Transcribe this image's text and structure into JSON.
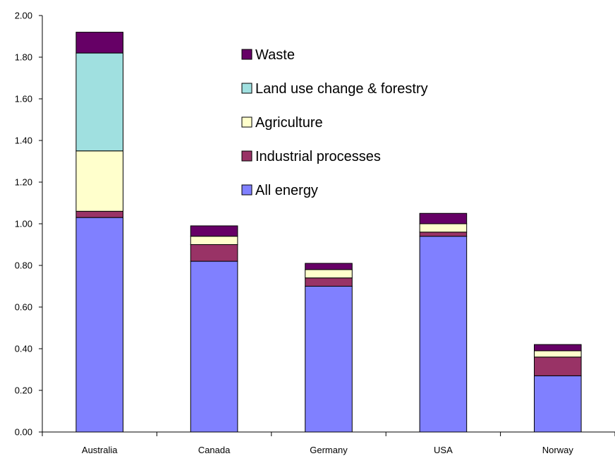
{
  "chart_data": {
    "type": "bar",
    "stacked": true,
    "categories": [
      "Australia",
      "Canada",
      "Germany",
      "USA",
      "Norway"
    ],
    "series": [
      {
        "name": "All energy",
        "color": "#8080ff",
        "values": [
          1.03,
          0.82,
          0.7,
          0.94,
          0.27
        ]
      },
      {
        "name": "Industrial processes",
        "color": "#993366",
        "values": [
          0.03,
          0.08,
          0.04,
          0.02,
          0.09
        ]
      },
      {
        "name": "Agriculture",
        "color": "#ffffcc",
        "values": [
          0.29,
          0.04,
          0.04,
          0.04,
          0.03
        ]
      },
      {
        "name": "Land use change & forestry",
        "color": "#a0e0e0",
        "values": [
          0.47,
          0.0,
          0.0,
          0.0,
          0.0
        ]
      },
      {
        "name": "Waste",
        "color": "#660066",
        "values": [
          0.1,
          0.05,
          0.03,
          0.05,
          0.03
        ]
      }
    ],
    "legend_order": [
      "Waste",
      "Land use change & forestry",
      "Agriculture",
      "Industrial processes",
      "All energy"
    ],
    "yticks": [
      "0.00",
      "0.20",
      "0.40",
      "0.60",
      "0.80",
      "1.00",
      "1.20",
      "1.40",
      "1.60",
      "1.80",
      "2.00"
    ],
    "ylim": [
      0,
      2.0
    ],
    "grid": false,
    "legend_position": "top-center",
    "title": "",
    "xlabel": "",
    "ylabel": ""
  }
}
